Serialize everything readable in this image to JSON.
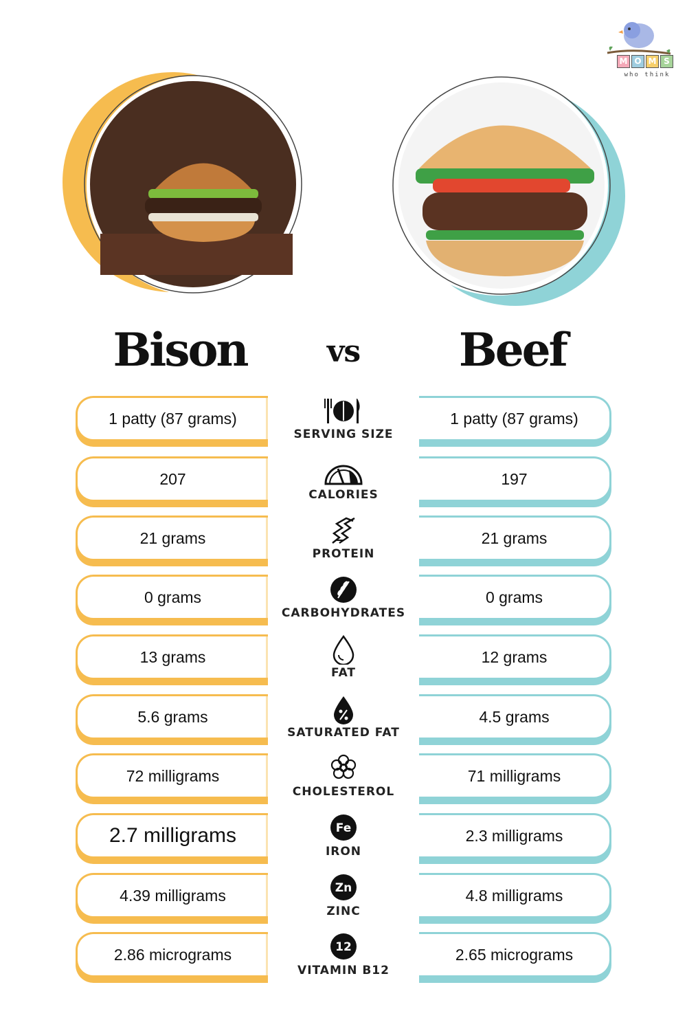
{
  "logo": {
    "letters": [
      "M",
      "O",
      "M",
      "S"
    ],
    "tagline": "who think"
  },
  "titles": {
    "left": "Bison",
    "vs": "vs",
    "right": "Beef"
  },
  "colors": {
    "bison_accent": "#f6bc4f",
    "beef_accent": "#8fd3d7"
  },
  "rows": [
    {
      "label": "SERVING SIZE",
      "icon": "utensils-plate-icon",
      "bison": "1 patty (87 grams)",
      "beef": "1 patty (87 grams)"
    },
    {
      "label": "CALORIES",
      "icon": "gauge-icon",
      "bison": "207",
      "beef": "197"
    },
    {
      "label": "PROTEIN",
      "icon": "protein-chain-icon",
      "bison": "21 grams",
      "beef": "21 grams"
    },
    {
      "label": "CARBOHYDRATES",
      "icon": "wheat-icon",
      "bison": "0 grams",
      "beef": "0 grams"
    },
    {
      "label": "FAT",
      "icon": "droplet-icon",
      "bison": "13 grams",
      "beef": "12 grams"
    },
    {
      "label": "SATURATED FAT",
      "icon": "percent-drop-icon",
      "bison": "5.6 grams",
      "beef": "4.5 grams"
    },
    {
      "label": "CHOLESTEROL",
      "icon": "molecule-flower-icon",
      "bison": "72 milligrams",
      "beef": "71 milligrams"
    },
    {
      "label": "IRON",
      "icon": "fe-badge-icon",
      "badge": "Fe",
      "bison": "2.7 milligrams",
      "beef": "2.3 milligrams"
    },
    {
      "label": "ZINC",
      "icon": "zn-badge-icon",
      "badge": "Zn",
      "bison": "4.39 milligrams",
      "beef": "4.8 milligrams"
    },
    {
      "label": "VITAMIN B12",
      "icon": "b12-badge-icon",
      "badge": "12",
      "bison": "2.86 micrograms",
      "beef": "2.65 micrograms"
    }
  ]
}
